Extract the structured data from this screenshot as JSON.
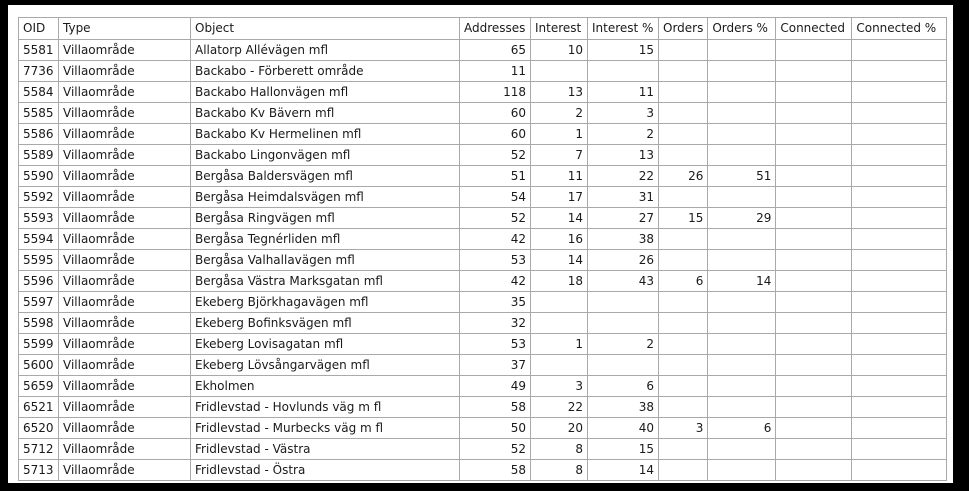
{
  "colors": {
    "frame": "#000000",
    "background": "#ffffff",
    "grid_border": "#a9a9a9",
    "text": "#1a1a1a"
  },
  "table": {
    "columns": [
      {
        "label": "OID",
        "align": "left"
      },
      {
        "label": "Type",
        "align": "left"
      },
      {
        "label": "Object",
        "align": "left"
      },
      {
        "label": "Addresses",
        "align": "right"
      },
      {
        "label": "Interest",
        "align": "right"
      },
      {
        "label": "Interest %",
        "align": "right"
      },
      {
        "label": "Orders",
        "align": "right"
      },
      {
        "label": "Orders %",
        "align": "right"
      },
      {
        "label": "Connected",
        "align": "right"
      },
      {
        "label": "Connected %",
        "align": "right"
      }
    ],
    "rows": [
      [
        "5581",
        "Villaområde",
        "Allatorp Allévägen mfl",
        "65",
        "10",
        "15",
        "",
        "",
        "",
        ""
      ],
      [
        "7736",
        "Villaområde",
        "Backabo - Förberett område",
        "11",
        "",
        "",
        "",
        "",
        "",
        ""
      ],
      [
        "5584",
        "Villaområde",
        "Backabo Hallonvägen mfl",
        "118",
        "13",
        "11",
        "",
        "",
        "",
        ""
      ],
      [
        "5585",
        "Villaområde",
        "Backabo Kv Bävern mfl",
        "60",
        "2",
        "3",
        "",
        "",
        "",
        ""
      ],
      [
        "5586",
        "Villaområde",
        "Backabo Kv Hermelinen mfl",
        "60",
        "1",
        "2",
        "",
        "",
        "",
        ""
      ],
      [
        "5589",
        "Villaområde",
        "Backabo Lingonvägen mfl",
        "52",
        "7",
        "13",
        "",
        "",
        "",
        ""
      ],
      [
        "5590",
        "Villaområde",
        "Bergåsa Baldersvägen mfl",
        "51",
        "11",
        "22",
        "26",
        "51",
        "",
        ""
      ],
      [
        "5592",
        "Villaområde",
        "Bergåsa Heimdalsvägen mfl",
        "54",
        "17",
        "31",
        "",
        "",
        "",
        ""
      ],
      [
        "5593",
        "Villaområde",
        "Bergåsa Ringvägen mfl",
        "52",
        "14",
        "27",
        "15",
        "29",
        "",
        ""
      ],
      [
        "5594",
        "Villaområde",
        "Bergåsa Tegnérliden mfl",
        "42",
        "16",
        "38",
        "",
        "",
        "",
        ""
      ],
      [
        "5595",
        "Villaområde",
        "Bergåsa Valhallavägen mfl",
        "53",
        "14",
        "26",
        "",
        "",
        "",
        ""
      ],
      [
        "5596",
        "Villaområde",
        "Bergåsa Västra Marksgatan mfl",
        "42",
        "18",
        "43",
        "6",
        "14",
        "",
        ""
      ],
      [
        "5597",
        "Villaområde",
        "Ekeberg Björkhagavägen mfl",
        "35",
        "",
        "",
        "",
        "",
        "",
        ""
      ],
      [
        "5598",
        "Villaområde",
        "Ekeberg Bofinksvägen mfl",
        "32",
        "",
        "",
        "",
        "",
        "",
        ""
      ],
      [
        "5599",
        "Villaområde",
        "Ekeberg Lovisagatan mfl",
        "53",
        "1",
        "2",
        "",
        "",
        "",
        ""
      ],
      [
        "5600",
        "Villaområde",
        "Ekeberg Lövsångarvägen mfl",
        "37",
        "",
        "",
        "",
        "",
        "",
        ""
      ],
      [
        "5659",
        "Villaområde",
        "Ekholmen",
        "49",
        "3",
        "6",
        "",
        "",
        "",
        ""
      ],
      [
        "6521",
        "Villaområde",
        "Fridlevstad - Hovlunds väg m fl",
        "58",
        "22",
        "38",
        "",
        "",
        "",
        ""
      ],
      [
        "6520",
        "Villaområde",
        "Fridlevstad - Murbecks väg m fl",
        "50",
        "20",
        "40",
        "3",
        "6",
        "",
        ""
      ],
      [
        "5712",
        "Villaområde",
        "Fridlevstad - Västra",
        "52",
        "8",
        "15",
        "",
        "",
        "",
        ""
      ],
      [
        "5713",
        "Villaområde",
        "Fridlevstad - Östra",
        "58",
        "8",
        "14",
        "",
        "",
        "",
        ""
      ]
    ]
  }
}
